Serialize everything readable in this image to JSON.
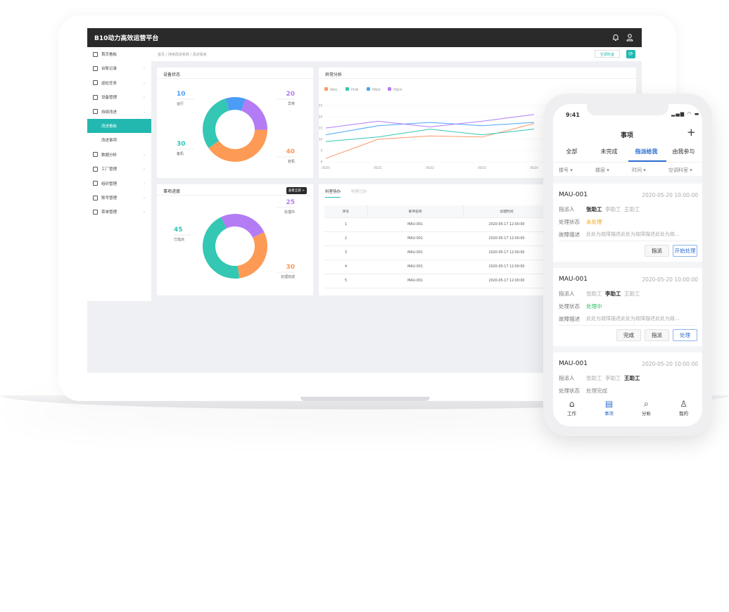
{
  "app": {
    "title": "B10动力高效运营平台",
    "bell_icon": "bell-icon",
    "user_icon": "user-icon"
  },
  "sidebar": {
    "items": [
      {
        "label": "首页看板",
        "icon": "home-icon"
      },
      {
        "label": "台账记录",
        "icon": "ledger-icon"
      },
      {
        "label": "巡检任务",
        "icon": "inspection-icon"
      },
      {
        "label": "设备管理",
        "icon": "device-icon"
      },
      {
        "label": "持续改进",
        "icon": "improve-icon"
      },
      {
        "label": "改进看板",
        "active": true
      },
      {
        "label": "改进事项"
      },
      {
        "label": "数据分析",
        "icon": "chart-icon"
      },
      {
        "label": "工厂管理",
        "icon": "factory-icon"
      },
      {
        "label": "组织管理",
        "icon": "org-icon"
      },
      {
        "label": "账号管理",
        "icon": "account-icon"
      },
      {
        "label": "菜单管理",
        "icon": "menu-icon"
      }
    ]
  },
  "breadcrumb": "首页 / 持续改进系统 / 改进看板",
  "toolbar": {
    "dept_button": "空调科室",
    "refresh_icon": "refresh-icon",
    "accent": "#22b8b0"
  },
  "cards": {
    "device_status": {
      "title": "设备状态"
    },
    "anomaly": {
      "title": "异常分析"
    },
    "progress": {
      "title": "事项进度",
      "view_all": "查看全部 >"
    },
    "todo": {
      "tabs": [
        "科室待办",
        "科室已办"
      ],
      "columns": [
        "序号",
        "事项名称",
        "创建时间"
      ],
      "rows": [
        [
          "1",
          "MAU-001",
          "2020-05-17 12:00:00"
        ],
        [
          "2",
          "MAU-001",
          "2020-05-17 12:00:00"
        ],
        [
          "3",
          "MAU-001",
          "2020-05-17 12:00:00"
        ],
        [
          "4",
          "MAU-001",
          "2020-05-17 12:00:00"
        ],
        [
          "5",
          "MAU-001",
          "2020-05-17 12:00:00"
        ]
      ]
    }
  },
  "chart_data": [
    {
      "type": "pie",
      "title": "设备状态",
      "donut": true,
      "slices": [
        {
          "label": "运行",
          "value": 10,
          "color": "#4a9cf5"
        },
        {
          "label": "异常",
          "value": 20,
          "color": "#b37cf5"
        },
        {
          "label": "宕机",
          "value": 40,
          "color": "#fd9a55"
        },
        {
          "label": "备机",
          "value": 30,
          "color": "#33c7b4"
        }
      ]
    },
    {
      "type": "line",
      "title": "异常分析",
      "categories": [
        "05/20",
        "05/21",
        "05/22",
        "05/23",
        "05/24"
      ],
      "ylim": [
        0,
        25
      ],
      "yticks": [
        0,
        5,
        10,
        15,
        20,
        25
      ],
      "legend": "top-left",
      "grid": true,
      "series": [
        {
          "name": "MAU",
          "color": "#fd9a6a",
          "values": [
            1.5,
            10,
            11.5,
            11,
            17
          ]
        },
        {
          "name": "PCW",
          "color": "#33c7b4",
          "values": [
            9,
            11,
            14.5,
            12,
            14.5
          ]
        },
        {
          "name": "PREX",
          "color": "#4aa6f7",
          "values": [
            12,
            16,
            17.5,
            16,
            17.5
          ]
        },
        {
          "name": "PQEX",
          "color": "#b37cf5",
          "values": [
            15,
            18,
            15.5,
            18,
            21
          ]
        }
      ]
    },
    {
      "type": "pie",
      "title": "事项进度",
      "donut": true,
      "slices": [
        {
          "label": "处理中",
          "value": 25,
          "color": "#b37cf5"
        },
        {
          "label": "处理完成",
          "value": 30,
          "color": "#fd9a55"
        },
        {
          "label": "已指派",
          "value": 45,
          "color": "#33c7b4"
        }
      ]
    }
  ],
  "phone": {
    "time": "9:41",
    "title": "事项",
    "add_icon": "plus-icon",
    "tabs": [
      "全部",
      "未完成",
      "指派给我",
      "由我参与"
    ],
    "active_tab": 2,
    "filters": [
      "楼号 ▾",
      "楼层 ▾",
      "时间 ▾",
      "空调科室 ▾"
    ],
    "cards": [
      {
        "id": "MAU-001",
        "time": "2020-05-20 10:00:00",
        "assignee_label": "指派人",
        "assignees": [
          "张助工",
          "李助工",
          "王助工"
        ],
        "bold_assignee": 0,
        "status_label": "处理状态",
        "status": "未处理",
        "status_color": "#f5a623",
        "desc_label": "故障描述",
        "desc": "此处为故障描述此处为故障描述此处为故...",
        "buttons": [
          "指派",
          "开始处理"
        ]
      },
      {
        "id": "MAU-001",
        "time": "2020-05-20 10:00:00",
        "assignee_label": "指派人",
        "assignees": [
          "张助工",
          "李助工",
          "王助工"
        ],
        "bold_assignee": 1,
        "status_label": "处理状态",
        "status": "处理中",
        "status_color": "#2bbf6a",
        "desc_label": "故障描述",
        "desc": "此处为故障描述此处为故障描述此处为故...",
        "buttons": [
          "完成",
          "指派",
          "处理"
        ]
      },
      {
        "id": "MAU-001",
        "time": "2020-05-20 10:00:00",
        "assignee_label": "指派人",
        "assignees": [
          "张助工",
          "李助工",
          "王助工"
        ],
        "bold_assignee": 2,
        "status_label": "处理状态",
        "status": "处理完成",
        "status_color": "#888888"
      }
    ],
    "tabbar": [
      {
        "label": "工作",
        "icon": "home-icon"
      },
      {
        "label": "事项",
        "icon": "clipboard-icon",
        "active": true
      },
      {
        "label": "分析",
        "icon": "search-icon"
      },
      {
        "label": "我的",
        "icon": "person-icon"
      }
    ]
  }
}
